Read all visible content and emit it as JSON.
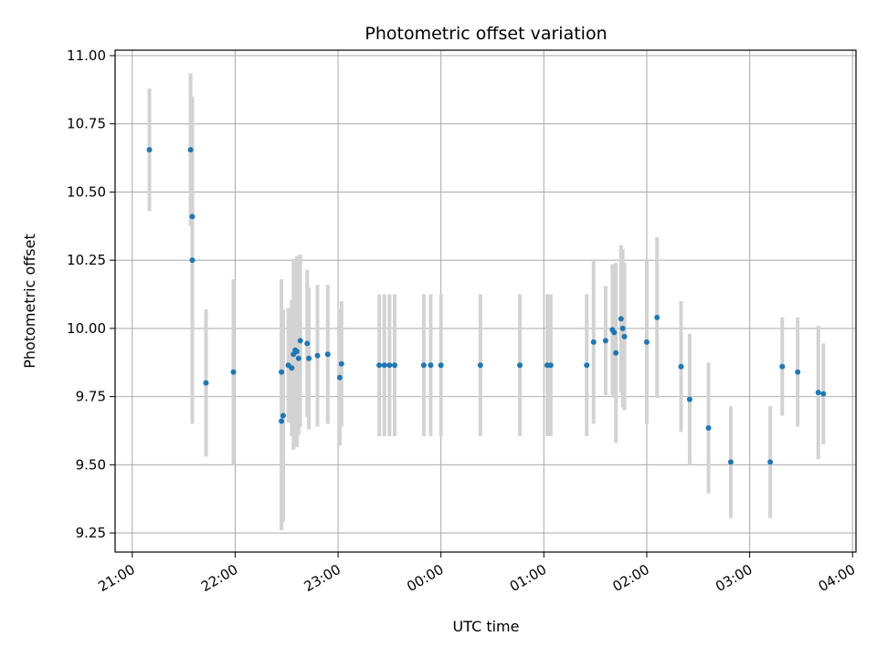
{
  "chart_data": {
    "type": "scatter",
    "title": "Photometric offset variation",
    "xlabel": "UTC time",
    "ylabel": "Photometric offset",
    "x_unit": "hours",
    "xlim": [
      "20:50",
      "24:00 + 04:02"
    ],
    "ylim": [
      9.18,
      11.02
    ],
    "x_ticks": [
      "21:00",
      "22:00",
      "23:00",
      "00:00",
      "01:00",
      "02:00",
      "03:00",
      "04:00"
    ],
    "y_ticks": [
      "9.25",
      "9.50",
      "9.75",
      "10.00",
      "10.25",
      "10.50",
      "10.75",
      "11.00"
    ],
    "grid": true,
    "marker_color": "#1f77b4",
    "errorbar_color": "#d3d3d3",
    "points": [
      {
        "x": "21:10",
        "y": 10.655,
        "err": 0.225
      },
      {
        "x": "21:34",
        "y": 10.655,
        "err": 0.28
      },
      {
        "x": "21:35",
        "y": 10.41,
        "err": 0.43
      },
      {
        "x": "21:35",
        "y": 10.25,
        "err": 0.6
      },
      {
        "x": "21:43",
        "y": 9.8,
        "err": 0.27
      },
      {
        "x": "21:59",
        "y": 9.84,
        "err": 0.34
      },
      {
        "x": "22:27",
        "y": 9.84,
        "err": 0.34
      },
      {
        "x": "22:27",
        "y": 9.66,
        "err": 0.4
      },
      {
        "x": "22:28",
        "y": 9.68,
        "err": 0.39
      },
      {
        "x": "22:31",
        "y": 9.865,
        "err": 0.21
      },
      {
        "x": "22:33",
        "y": 9.855,
        "err": 0.25
      },
      {
        "x": "22:34",
        "y": 9.905,
        "err": 0.35
      },
      {
        "x": "22:35",
        "y": 9.92,
        "err": 0.31
      },
      {
        "x": "22:36",
        "y": 9.915,
        "err": 0.35
      },
      {
        "x": "22:37",
        "y": 9.89,
        "err": 0.28
      },
      {
        "x": "22:38",
        "y": 9.955,
        "err": 0.315
      },
      {
        "x": "22:42",
        "y": 9.945,
        "err": 0.27
      },
      {
        "x": "22:43",
        "y": 9.89,
        "err": 0.26
      },
      {
        "x": "22:48",
        "y": 9.9,
        "err": 0.26
      },
      {
        "x": "22:54",
        "y": 9.905,
        "err": 0.255
      },
      {
        "x": "23:01",
        "y": 9.82,
        "err": 0.25
      },
      {
        "x": "23:02",
        "y": 9.87,
        "err": 0.23
      },
      {
        "x": "23:24",
        "y": 9.865,
        "err": 0.26
      },
      {
        "x": "23:27",
        "y": 9.865,
        "err": 0.26
      },
      {
        "x": "23:30",
        "y": 9.865,
        "err": 0.26
      },
      {
        "x": "23:33",
        "y": 9.865,
        "err": 0.26
      },
      {
        "x": "23:50",
        "y": 9.865,
        "err": 0.26
      },
      {
        "x": "23:54",
        "y": 9.865,
        "err": 0.26
      },
      {
        "x": "24:00 + 00:00",
        "y": 9.865,
        "err": 0.26
      },
      {
        "x": "24:00 + 00:23",
        "y": 9.865,
        "err": 0.26
      },
      {
        "x": "24:00 + 00:46",
        "y": 9.865,
        "err": 0.26
      },
      {
        "x": "24:00 + 01:02",
        "y": 9.865,
        "err": 0.26
      },
      {
        "x": "24:00 + 01:04",
        "y": 9.865,
        "err": 0.26
      },
      {
        "x": "24:00 + 01:25",
        "y": 9.865,
        "err": 0.26
      },
      {
        "x": "24:00 + 01:29",
        "y": 9.95,
        "err": 0.3
      },
      {
        "x": "24:00 + 01:36",
        "y": 9.955,
        "err": 0.2
      },
      {
        "x": "24:00 + 01:40",
        "y": 9.995,
        "err": 0.24
      },
      {
        "x": "24:00 + 01:41",
        "y": 9.985,
        "err": 0.24
      },
      {
        "x": "24:00 + 01:42",
        "y": 9.91,
        "err": 0.33
      },
      {
        "x": "24:00 + 01:45",
        "y": 10.035,
        "err": 0.27
      },
      {
        "x": "24:00 + 01:46",
        "y": 10.0,
        "err": 0.29
      },
      {
        "x": "24:00 + 01:47",
        "y": 9.97,
        "err": 0.27
      },
      {
        "x": "24:00 + 02:00",
        "y": 9.95,
        "err": 0.3
      },
      {
        "x": "24:00 + 02:06",
        "y": 10.04,
        "err": 0.295
      },
      {
        "x": "24:00 + 02:20",
        "y": 9.86,
        "err": 0.24
      },
      {
        "x": "24:00 + 02:25",
        "y": 9.74,
        "err": 0.24
      },
      {
        "x": "24:00 + 02:36",
        "y": 9.635,
        "err": 0.24
      },
      {
        "x": "24:00 + 02:49",
        "y": 9.51,
        "err": 0.205
      },
      {
        "x": "24:00 + 03:12",
        "y": 9.51,
        "err": 0.205
      },
      {
        "x": "24:00 + 03:19",
        "y": 9.86,
        "err": 0.18
      },
      {
        "x": "24:00 + 03:28",
        "y": 9.84,
        "err": 0.2
      },
      {
        "x": "24:00 + 03:40",
        "y": 9.765,
        "err": 0.245
      },
      {
        "x": "24:00 + 03:43",
        "y": 9.76,
        "err": 0.185
      }
    ]
  }
}
